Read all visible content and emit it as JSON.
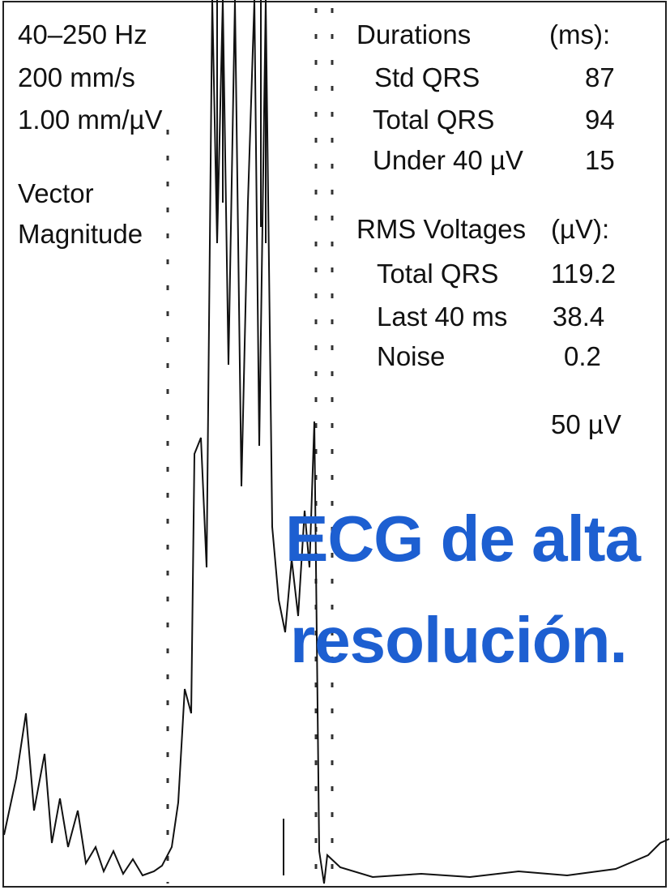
{
  "header": {
    "filter": "40–250 Hz",
    "speed": "200 mm/s",
    "gain": "1.00 mm/µV",
    "lead": [
      "Vector",
      "Magnitude"
    ]
  },
  "durations": {
    "title": "Durations",
    "unit": "(ms):",
    "rows": [
      [
        "Std  QRS",
        "87"
      ],
      [
        "Total QRS",
        "94"
      ],
      [
        "Under  40 µV",
        "15"
      ]
    ]
  },
  "rms": {
    "title": "RMS Voltages",
    "unit": "(µV):",
    "rows": [
      [
        "Total QRS",
        "119.2"
      ],
      [
        "Last 40 ms",
        "38.4"
      ],
      [
        "Noise",
        "0.2"
      ]
    ]
  },
  "scale": "50 µV",
  "caption": [
    "ECG de alta",
    "resolución."
  ]
}
